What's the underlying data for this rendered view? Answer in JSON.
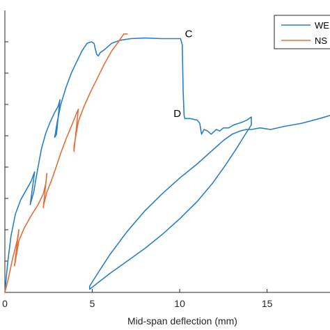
{
  "chart_data": {
    "type": "line",
    "title": "",
    "xlabel": "Mid-span deflection (mm)",
    "ylabel": "",
    "xlim": [
      0,
      18.6
    ],
    "ylim": [
      0,
      9
    ],
    "xticks": [
      0,
      5,
      10,
      15
    ],
    "xtick_labels": [
      "0",
      "5",
      "10",
      "15"
    ],
    "yticks": [
      1,
      2,
      3,
      4,
      5,
      6,
      7,
      8
    ],
    "grid": false,
    "legend": {
      "placement": "top-right",
      "entries": [
        "WE",
        "NS"
      ]
    },
    "colors": {
      "WE": "#2a7fc4",
      "NS": "#e0703a",
      "axis": "#262626"
    },
    "series": [
      {
        "name": "WE",
        "color": "#2a7fc4",
        "x": [
          0,
          0.15,
          0.35,
          0.6,
          0.9,
          1.2,
          1.5,
          1.7,
          1.45,
          1.65,
          1.85,
          2.1,
          2.35,
          2.6,
          2.85,
          3.05,
          3.15,
          2.95,
          2.85,
          3.0,
          3.2,
          3.5,
          3.8,
          4.1,
          4.4,
          4.7,
          4.95,
          5.1,
          5.25,
          5.35,
          5.45,
          5.7,
          6.1,
          6.6,
          7.2,
          8.0,
          9.0,
          10.05,
          10.15,
          10.2,
          10.25,
          10.3,
          10.6,
          11.0,
          11.15,
          11.25,
          11.4,
          11.6,
          11.8,
          12.1,
          12.3,
          12.5,
          12.8,
          13.1,
          13.4,
          13.65,
          13.85,
          14.1,
          14.1,
          13.7,
          13.2,
          12.6,
          11.9,
          11.0,
          10.0,
          9.0,
          8.0,
          7.0,
          6.0,
          5.3,
          4.85,
          4.85,
          5.3,
          6.0,
          7.0,
          8.0,
          9.0,
          10.0,
          11.0,
          11.8,
          12.5,
          13.0,
          13.45,
          13.8,
          14.1,
          14.6,
          15.2,
          16.0,
          17.0,
          18.0,
          18.6
        ],
        "y": [
          0,
          0.9,
          1.8,
          2.5,
          2.95,
          3.25,
          3.55,
          3.85,
          2.8,
          3.2,
          3.85,
          4.6,
          5.1,
          5.45,
          5.75,
          5.95,
          6.15,
          5.05,
          4.95,
          5.45,
          6.0,
          6.55,
          7.0,
          7.35,
          7.7,
          7.95,
          8.0,
          7.95,
          7.6,
          7.55,
          7.65,
          7.75,
          7.95,
          8.05,
          8.1,
          8.12,
          8.1,
          8.1,
          7.9,
          6.4,
          5.65,
          5.55,
          5.55,
          5.5,
          5.4,
          5.05,
          5.2,
          5.15,
          5.05,
          5.2,
          5.15,
          5.25,
          5.25,
          5.35,
          5.4,
          5.45,
          5.5,
          5.6,
          5.35,
          5.0,
          4.55,
          4.05,
          3.5,
          2.9,
          2.35,
          1.85,
          1.4,
          1.0,
          0.6,
          0.3,
          0.1,
          0.2,
          0.6,
          1.2,
          1.95,
          2.6,
          3.15,
          3.65,
          4.1,
          4.5,
          4.85,
          5.05,
          5.15,
          5.2,
          5.2,
          5.25,
          5.2,
          5.3,
          5.4,
          5.55,
          5.65
        ]
      },
      {
        "name": "NS",
        "color": "#e0703a",
        "x": [
          0,
          0.2,
          0.45,
          0.7,
          0.8,
          0.55,
          0.6,
          0.8,
          1.1,
          1.5,
          1.9,
          2.2,
          2.35,
          2.4,
          2.2,
          2.2,
          2.4,
          2.65,
          2.9,
          3.2,
          3.5,
          3.8,
          4.05,
          4.2,
          3.95,
          3.95,
          4.2,
          4.5,
          4.9,
          5.3,
          5.7,
          6.1,
          6.5,
          6.8,
          7.0
        ],
        "y": [
          0,
          0.45,
          1.1,
          1.65,
          2.0,
          0.85,
          1.0,
          1.65,
          2.05,
          2.45,
          2.8,
          3.15,
          3.5,
          3.8,
          2.7,
          2.75,
          3.2,
          3.55,
          3.95,
          4.45,
          4.9,
          5.3,
          5.65,
          5.85,
          4.5,
          4.65,
          5.45,
          5.9,
          6.4,
          6.85,
          7.3,
          7.7,
          8.0,
          8.25,
          8.25
        ]
      }
    ],
    "annotations": [
      {
        "text": "C",
        "x": 10.3,
        "y": 8.15
      },
      {
        "text": "D",
        "x": 9.65,
        "y": 5.6
      }
    ]
  }
}
